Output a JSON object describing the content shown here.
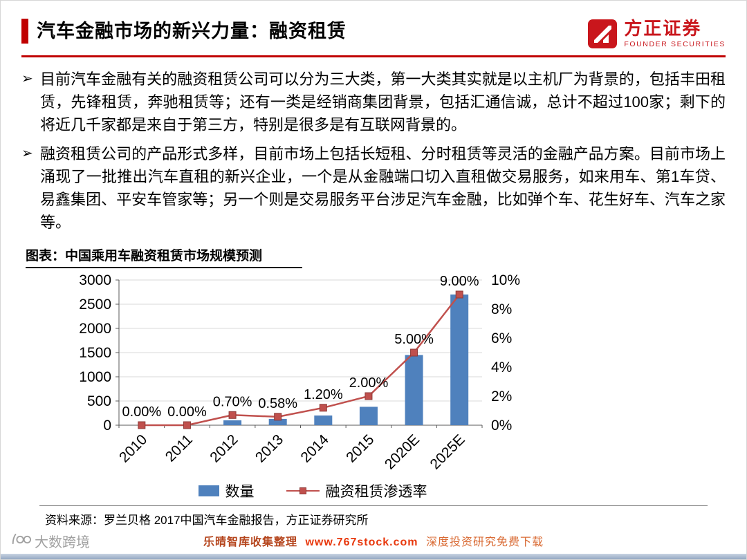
{
  "bullet_marker": "➢",
  "header": {
    "title": "汽车金融市场的新兴力量：融资租赁",
    "logo": {
      "cn": "方正证券",
      "en": "FOUNDER SECURITIES"
    }
  },
  "bullets": [
    "目前汽车金融有关的融资租赁公司可以分为三大类，第一大类其实就是以主机厂为背景的，包括丰田租赁，先锋租赁，奔驰租赁等；还有一类是经销商集团背景，包括汇通信诚，总计不超过100家；剩下的将近几千家都是来自于第三方，特别是很多是有互联网背景的。",
    "融资租赁公司的产品形式多样，目前市场上包括长短租、分时租赁等灵活的金融产品方案。目前市场上涌现了一批推出汽车直租的新兴企业，一个是从金融端口切入直租做交易服务，如来用车、第1车贷、易鑫集团、平安车管家等；另一个则是交易服务平台涉足汽车金融，比如弹个车、花生好车、汽车之家等。"
  ],
  "chart_caption": "图表：中国乘用车融资租赁市场规模预测",
  "chart_data": {
    "type": "bar",
    "subtype": "bar+line combo, secondary right axis",
    "title": "中国乘用车融资租赁市场规模预测",
    "categories": [
      "2010",
      "2011",
      "2012",
      "2013",
      "2014",
      "2015",
      "2020E",
      "2025E"
    ],
    "series": [
      {
        "name": "数量",
        "type": "bar",
        "axis": "left",
        "color": "#4f81bd",
        "values": [
          0,
          0,
          100,
          130,
          200,
          380,
          1450,
          2700
        ]
      },
      {
        "name": "融资租赁渗透率",
        "type": "line",
        "axis": "right",
        "color": "#c0504d",
        "values": [
          0.0,
          0.0,
          0.7,
          0.58,
          1.2,
          2.0,
          5.0,
          9.0
        ],
        "labels": [
          "0.00%",
          "0.00%",
          "0.70%",
          "0.58%",
          "1.20%",
          "2.00%",
          "5.00%",
          "9.00%"
        ]
      }
    ],
    "left_axis": {
      "min": 0,
      "max": 3000,
      "step": 500
    },
    "right_axis": {
      "min": 0,
      "max": 10,
      "step": 2,
      "suffix": "%"
    },
    "grid": true,
    "legend_position": "bottom"
  },
  "footer": {
    "source": "资料来源：罗兰贝格 2017中国汽车金融报告，方正证券研究所",
    "watermark": {
      "prefix": "乐晴智库收集整理",
      "url": "www.767stock.com",
      "suffix": "深度投资研究免费下载"
    },
    "brand": "大数跨境"
  },
  "colors": {
    "accent_red": "#c00000",
    "bar_blue": "#4f81bd",
    "line_red": "#c0504d",
    "watermark_red": "#e8380d"
  }
}
